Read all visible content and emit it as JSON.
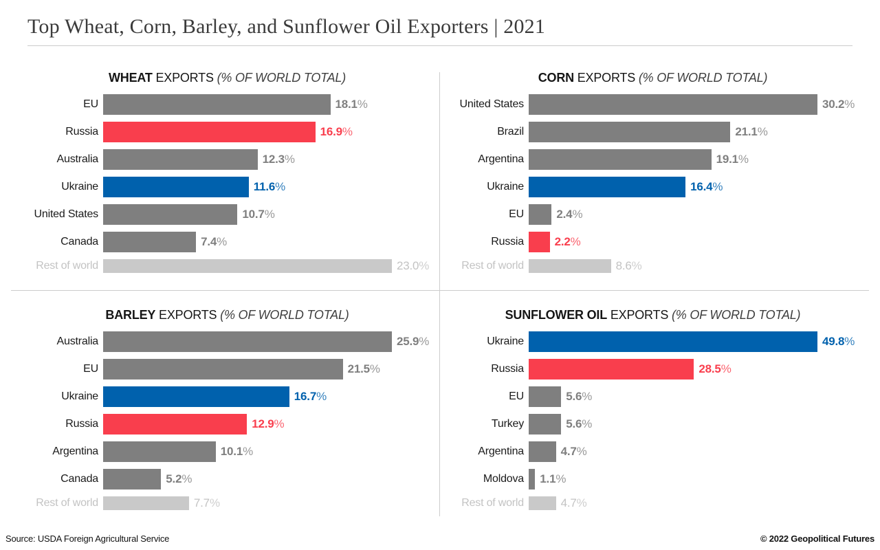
{
  "page": {
    "title": "Top Wheat, Corn, Barley, and Sunflower Oil Exporters | 2021",
    "footer": {
      "source": "Source: USDA Foreign Agricultural Service",
      "copyright": "© 2022 Geopolitical Futures"
    }
  },
  "colors": {
    "bar_default": "#7f7f7f",
    "bar_russia": "#f93e4d",
    "bar_ukraine": "#0061ad",
    "bar_rest_of_world": "#c9c9c9",
    "label_text": "#1a1a1a",
    "rest_of_world_text": "#c3c3c3",
    "divider": "#cccccc",
    "title_text": "#3b3b3b"
  },
  "chart_data": [
    {
      "type": "bar",
      "orientation": "horizontal",
      "title_main": "WHEAT",
      "title_mid": "EXPORTS",
      "title_note": "(% OF WORLD TOTAL)",
      "unit": "%",
      "xlim": [
        0,
        23.0
      ],
      "rows": [
        {
          "label": "EU",
          "value": 18.1,
          "display": "18.1",
          "type": "default"
        },
        {
          "label": "Russia",
          "value": 16.9,
          "display": "16.9",
          "type": "russia"
        },
        {
          "label": "Australia",
          "value": 12.3,
          "display": "12.3",
          "type": "default"
        },
        {
          "label": "Ukraine",
          "value": 11.6,
          "display": "11.6",
          "type": "ukraine"
        },
        {
          "label": "United States",
          "value": 10.7,
          "display": "10.7",
          "type": "default"
        },
        {
          "label": "Canada",
          "value": 7.4,
          "display": "7.4",
          "type": "default"
        },
        {
          "label": "Rest of world",
          "value": 23.0,
          "display": "23.0",
          "type": "rest"
        }
      ]
    },
    {
      "type": "bar",
      "orientation": "horizontal",
      "title_main": "CORN",
      "title_mid": "EXPORTS",
      "title_note": "(% OF WORLD TOTAL)",
      "unit": "%",
      "xlim": [
        0,
        30.2
      ],
      "rows": [
        {
          "label": "United States",
          "value": 30.2,
          "display": "30.2",
          "type": "default"
        },
        {
          "label": "Brazil",
          "value": 21.1,
          "display": "21.1",
          "type": "default"
        },
        {
          "label": "Argentina",
          "value": 19.1,
          "display": "19.1",
          "type": "default"
        },
        {
          "label": "Ukraine",
          "value": 16.4,
          "display": "16.4",
          "type": "ukraine"
        },
        {
          "label": "EU",
          "value": 2.4,
          "display": "2.4",
          "type": "default"
        },
        {
          "label": "Russia",
          "value": 2.2,
          "display": "2.2",
          "type": "russia"
        },
        {
          "label": "Rest of world",
          "value": 8.6,
          "display": "8.6",
          "type": "rest"
        }
      ]
    },
    {
      "type": "bar",
      "orientation": "horizontal",
      "title_main": "BARLEY",
      "title_mid": "EXPORTS",
      "title_note": "(% OF WORLD TOTAL)",
      "unit": "%",
      "xlim": [
        0,
        25.9
      ],
      "rows": [
        {
          "label": "Australia",
          "value": 25.9,
          "display": "25.9",
          "type": "default"
        },
        {
          "label": "EU",
          "value": 21.5,
          "display": "21.5",
          "type": "default"
        },
        {
          "label": "Ukraine",
          "value": 16.7,
          "display": "16.7",
          "type": "ukraine"
        },
        {
          "label": "Russia",
          "value": 12.9,
          "display": "12.9",
          "type": "russia"
        },
        {
          "label": "Argentina",
          "value": 10.1,
          "display": "10.1",
          "type": "default"
        },
        {
          "label": "Canada",
          "value": 5.2,
          "display": "5.2",
          "type": "default"
        },
        {
          "label": "Rest of world",
          "value": 7.7,
          "display": "7.7",
          "type": "rest"
        }
      ]
    },
    {
      "type": "bar",
      "orientation": "horizontal",
      "title_main": "SUNFLOWER OIL",
      "title_mid": "EXPORTS",
      "title_note": "(% OF WORLD TOTAL)",
      "unit": "%",
      "xlim": [
        0,
        49.8
      ],
      "rows": [
        {
          "label": "Ukraine",
          "value": 49.8,
          "display": "49.8",
          "type": "ukraine"
        },
        {
          "label": "Russia",
          "value": 28.5,
          "display": "28.5",
          "type": "russia"
        },
        {
          "label": "EU",
          "value": 5.6,
          "display": "5.6",
          "type": "default"
        },
        {
          "label": "Turkey",
          "value": 5.6,
          "display": "5.6",
          "type": "default"
        },
        {
          "label": "Argentina",
          "value": 4.7,
          "display": "4.7",
          "type": "default"
        },
        {
          "label": "Moldova",
          "value": 1.1,
          "display": "1.1",
          "type": "default"
        },
        {
          "label": "Rest of world",
          "value": 4.7,
          "display": "4.7",
          "type": "rest"
        }
      ]
    }
  ]
}
